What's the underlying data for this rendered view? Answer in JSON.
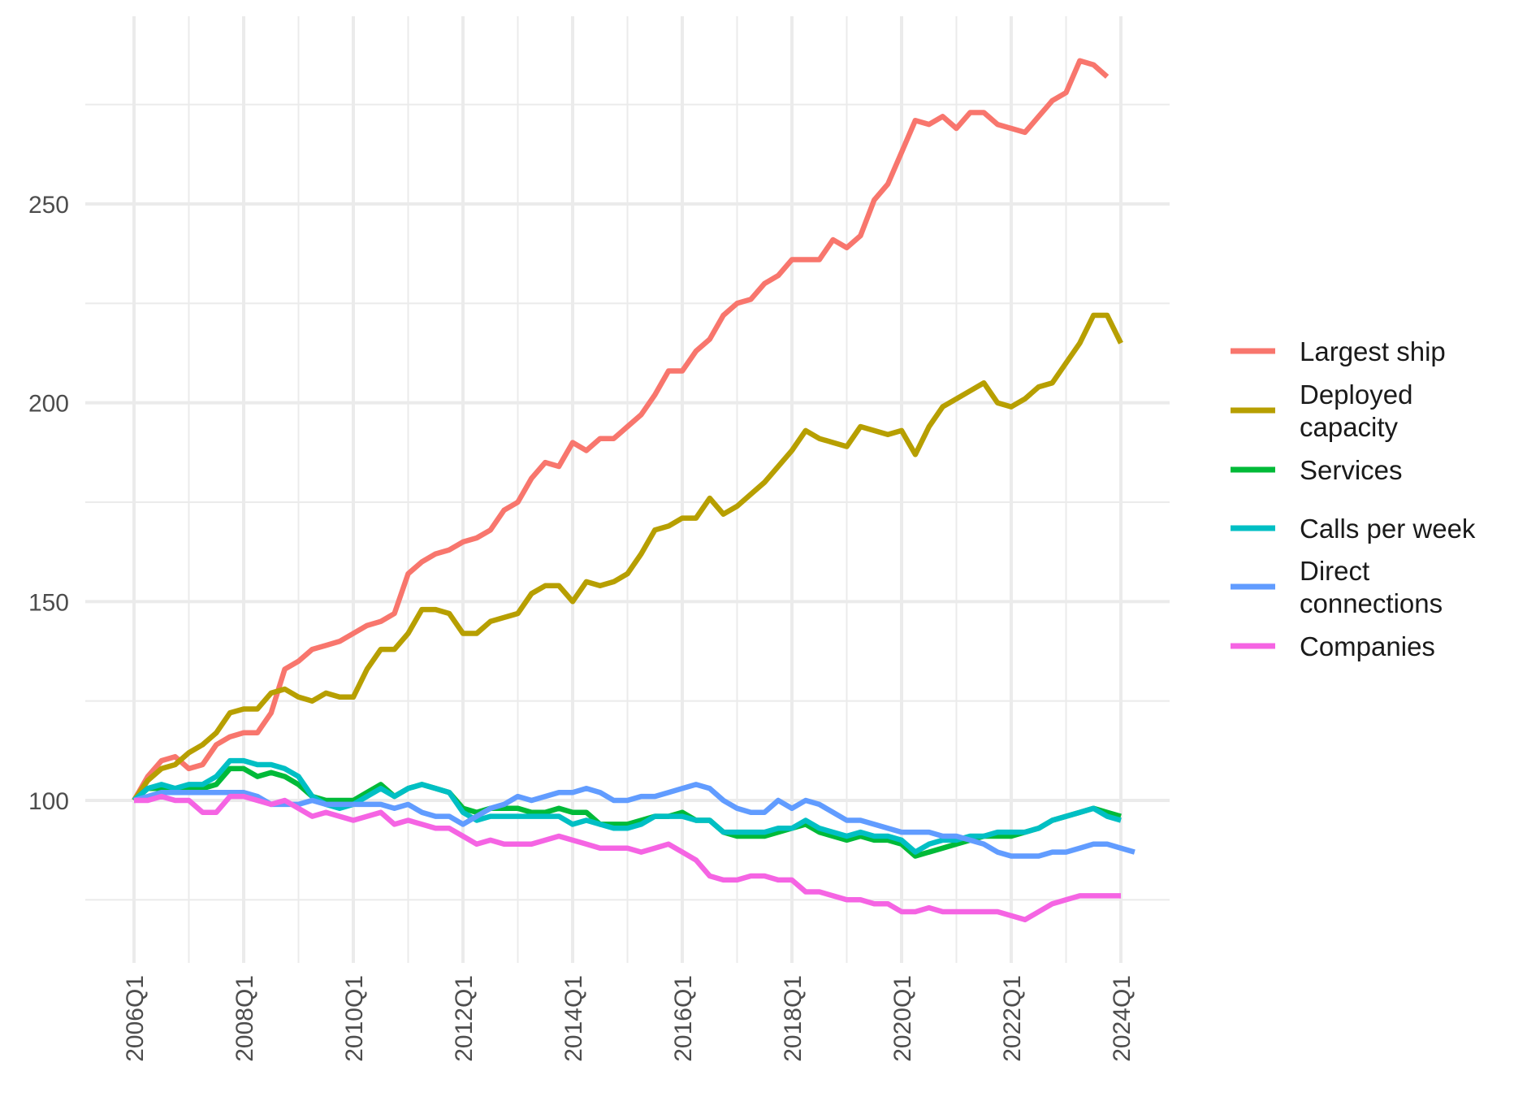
{
  "chart_data": {
    "type": "line",
    "title": "",
    "xlabel": "",
    "ylabel": "",
    "x_start": "2006Q1",
    "x_tick_labels": [
      "2006Q1",
      "2008Q1",
      "2010Q1",
      "2012Q1",
      "2014Q1",
      "2016Q1",
      "2018Q1",
      "2020Q1",
      "2022Q1",
      "2024Q1"
    ],
    "y_ticks": [
      100,
      150,
      200,
      250
    ],
    "ylim": [
      60,
      290
    ],
    "grid": true,
    "legend_position": "right",
    "series": [
      {
        "name": "Largest ship",
        "color": "#F8766D",
        "values": [
          100,
          106,
          110,
          111,
          108,
          109,
          114,
          116,
          117,
          117,
          122,
          133,
          135,
          138,
          139,
          140,
          142,
          144,
          145,
          147,
          157,
          160,
          162,
          163,
          165,
          166,
          168,
          173,
          175,
          181,
          185,
          184,
          190,
          188,
          191,
          191,
          194,
          197,
          202,
          208,
          208,
          213,
          216,
          222,
          225,
          226,
          230,
          232,
          236,
          236,
          236,
          241,
          239,
          242,
          251,
          255,
          263,
          271,
          270,
          272,
          269,
          273,
          273,
          270,
          269,
          268,
          272,
          276,
          278,
          286,
          285,
          282
        ]
      },
      {
        "name": "Deployed\ncapacity",
        "color": "#B79F00",
        "values": [
          100,
          105,
          108,
          109,
          112,
          114,
          117,
          122,
          123,
          123,
          127,
          128,
          126,
          125,
          127,
          126,
          126,
          133,
          138,
          138,
          142,
          148,
          148,
          147,
          142,
          142,
          145,
          146,
          147,
          152,
          154,
          154,
          150,
          155,
          154,
          155,
          157,
          162,
          168,
          169,
          171,
          171,
          176,
          172,
          174,
          177,
          180,
          184,
          188,
          193,
          191,
          190,
          189,
          194,
          193,
          192,
          193,
          187,
          194,
          199,
          201,
          203,
          205,
          200,
          199,
          201,
          204,
          205,
          210,
          215,
          222,
          222,
          215
        ]
      },
      {
        "name": "Services",
        "color": "#00BA38",
        "values": [
          100,
          103,
          103,
          102,
          103,
          103,
          104,
          108,
          108,
          106,
          107,
          106,
          104,
          101,
          100,
          100,
          100,
          102,
          104,
          101,
          103,
          104,
          103,
          102,
          98,
          97,
          98,
          98,
          98,
          97,
          97,
          98,
          97,
          97,
          94,
          94,
          94,
          95,
          96,
          96,
          97,
          95,
          95,
          92,
          91,
          91,
          91,
          92,
          93,
          94,
          92,
          91,
          90,
          91,
          90,
          90,
          89,
          86,
          87,
          88,
          89,
          90,
          91,
          91,
          91,
          92,
          93,
          95,
          96,
          97,
          98,
          97,
          96
        ]
      },
      {
        "name": "Calls per week",
        "color": "#00BFC4",
        "values": [
          100,
          103,
          104,
          103,
          104,
          104,
          106,
          110,
          110,
          109,
          109,
          108,
          106,
          101,
          99,
          98,
          99,
          101,
          103,
          101,
          103,
          104,
          103,
          102,
          97,
          95,
          96,
          96,
          96,
          96,
          96,
          96,
          94,
          95,
          94,
          93,
          93,
          94,
          96,
          96,
          96,
          95,
          95,
          92,
          92,
          92,
          92,
          93,
          93,
          95,
          93,
          92,
          91,
          92,
          91,
          91,
          90,
          87,
          89,
          90,
          90,
          91,
          91,
          92,
          92,
          92,
          93,
          95,
          96,
          97,
          98,
          96,
          95
        ]
      },
      {
        "name": "Direct\nconnections",
        "color": "#619CFF",
        "values": [
          100,
          101,
          102,
          102,
          102,
          102,
          102,
          102,
          102,
          101,
          99,
          99,
          99,
          100,
          99,
          99,
          99,
          99,
          99,
          98,
          99,
          97,
          96,
          96,
          94,
          96,
          98,
          99,
          101,
          100,
          101,
          102,
          102,
          103,
          102,
          100,
          100,
          101,
          101,
          102,
          103,
          104,
          103,
          100,
          98,
          97,
          97,
          100,
          98,
          100,
          99,
          97,
          95,
          95,
          94,
          93,
          92,
          92,
          92,
          91,
          91,
          90,
          89,
          87,
          86,
          86,
          86,
          87,
          87,
          88,
          89,
          89,
          88,
          87
        ]
      },
      {
        "name": "Companies",
        "color": "#F564E3",
        "values": [
          100,
          100,
          101,
          100,
          100,
          97,
          97,
          101,
          101,
          100,
          99,
          100,
          98,
          96,
          97,
          96,
          95,
          96,
          97,
          94,
          95,
          94,
          93,
          93,
          91,
          89,
          90,
          89,
          89,
          89,
          90,
          91,
          90,
          89,
          88,
          88,
          88,
          87,
          88,
          89,
          87,
          85,
          81,
          80,
          80,
          81,
          81,
          80,
          80,
          77,
          77,
          76,
          75,
          75,
          74,
          74,
          72,
          72,
          73,
          72,
          72,
          72,
          72,
          72,
          71,
          70,
          72,
          74,
          75,
          76,
          76,
          76,
          76
        ]
      }
    ]
  }
}
